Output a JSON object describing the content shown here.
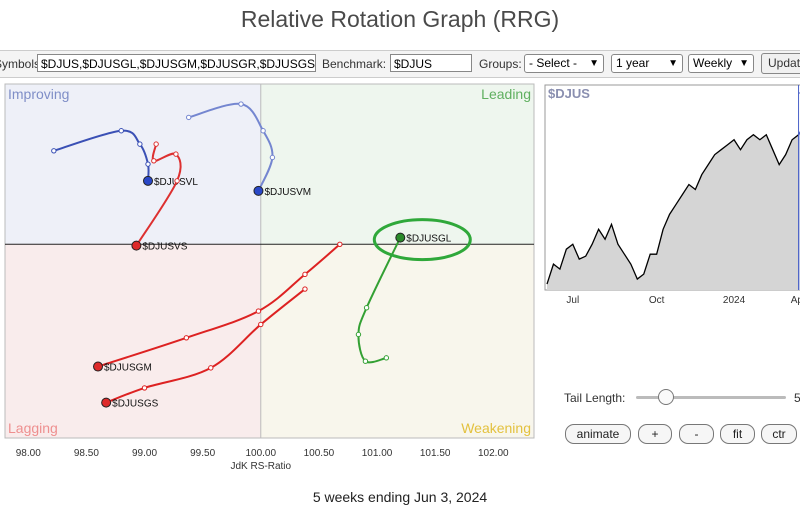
{
  "title": "Relative Rotation Graph (RRG)",
  "toolbar": {
    "symbols_label": "Symbols:",
    "symbols_value": "$DJUS,$DJUSGL,$DJUSGM,$DJUSGR,$DJUSGS",
    "benchmark_label": "Benchmark:",
    "benchmark_value": "$DJUS",
    "groups_label": "Groups:",
    "groups_value": "- Select -",
    "period_value": "1 year",
    "interval_value": "Weekly",
    "update_label": "Update"
  },
  "rrg": {
    "quadrants": {
      "improving": "Improving",
      "leading": "Leading",
      "lagging": "Lagging",
      "weakening": "Weakening"
    },
    "quadrant_colors": {
      "improving_bg": "#eef0f8",
      "leading_bg": "#eef6ee",
      "lagging_bg": "#f9ecec",
      "weakening_bg": "#f8f6ec",
      "improving_text": "#7f8ec7",
      "leading_text": "#60b060",
      "lagging_text": "#ee8f8f",
      "weakening_text": "#e3c13e"
    },
    "x_axis_label": "JdK RS-Ratio",
    "x_ticks": [
      "98.00",
      "98.50",
      "99.00",
      "99.50",
      "100.00",
      "100.50",
      "101.00",
      "101.50",
      "102.00"
    ],
    "x_range": [
      97.8,
      102.35
    ],
    "y_range": [
      97.1,
      102.4
    ],
    "center": [
      100,
      100
    ],
    "highlight_circle_color": "#2fa83a",
    "series": [
      {
        "name": "$DJUSVL",
        "color": "#2233bb",
        "head_color": "#2a48c8",
        "tail_color": "#3a50b5",
        "points": [
          [
            98.22,
            101.4
          ],
          [
            98.8,
            101.7
          ],
          [
            98.96,
            101.5
          ],
          [
            99.03,
            101.2
          ],
          [
            99.03,
            100.95
          ]
        ]
      },
      {
        "name": "$DJUSVM",
        "color": "#6677cc",
        "head_color": "#2a48c8",
        "tail_color": "#7486d0",
        "points": [
          [
            99.38,
            101.9
          ],
          [
            99.83,
            102.1
          ],
          [
            100.02,
            101.7
          ],
          [
            100.1,
            101.3
          ],
          [
            99.98,
            100.8
          ]
        ]
      },
      {
        "name": "$DJUSVS",
        "color": "#dd2222",
        "head_color": "#dd2a2a",
        "tail_color": "#dd3030",
        "points": [
          [
            99.1,
            101.5
          ],
          [
            99.08,
            101.25
          ],
          [
            99.27,
            101.35
          ],
          [
            99.28,
            100.95
          ],
          [
            98.93,
            99.98
          ]
        ]
      },
      {
        "name": "$DJUSGL",
        "color": "#2a9a2a",
        "head_color": "#2a8a2a",
        "tail_color": "#33a033",
        "points": [
          [
            101.08,
            98.3
          ],
          [
            100.9,
            98.25
          ],
          [
            100.84,
            98.65
          ],
          [
            100.91,
            99.05
          ],
          [
            101.2,
            100.1
          ]
        ]
      },
      {
        "name": "$DJUSGM",
        "color": "#dd1111",
        "head_color": "#dd2a2a",
        "tail_color": "#dd2222",
        "points": [
          [
            100.68,
            100.0
          ],
          [
            100.38,
            99.55
          ],
          [
            99.98,
            99.0
          ],
          [
            99.36,
            98.6
          ],
          [
            98.6,
            98.17
          ]
        ]
      },
      {
        "name": "$DJUSGS",
        "color": "#dd1111",
        "head_color": "#dd2a2a",
        "tail_color": "#dd2222",
        "points": [
          [
            100.38,
            99.33
          ],
          [
            100.0,
            98.8
          ],
          [
            99.57,
            98.15
          ],
          [
            99.0,
            97.85
          ],
          [
            98.67,
            97.63
          ]
        ]
      }
    ]
  },
  "price_chart": {
    "symbol": "$DJUS",
    "x_ticks": [
      "Jul",
      "Oct",
      "2024",
      "Apr"
    ],
    "values": [
      97,
      99,
      98.5,
      100.5,
      101,
      99.5,
      99.8,
      101,
      102.5,
      101.5,
      103,
      101,
      100,
      99,
      97.5,
      98,
      100,
      100,
      102.5,
      104,
      105,
      106,
      107,
      106.5,
      108,
      109,
      110,
      110.5,
      111,
      111.5,
      110.5,
      111.5,
      112,
      111.5,
      112,
      110.5,
      109,
      110,
      111.5,
      112,
      113
    ],
    "highlight_start_index": 39,
    "line_color": "#000000",
    "fill_color": "#d5d5d5",
    "highlight_fill": "#c5cbe6",
    "highlight_line": "#4a60c8"
  },
  "controls": {
    "tail_length_label": "Tail Length:",
    "tail_length_value": "5",
    "tail_length_fraction": 0.16,
    "animate_label": "animate",
    "plus_label": "+",
    "minus_label": "-",
    "fit_label": "fit",
    "ctr_label": "ctr"
  },
  "footer_text": "5 weeks ending Jun 3, 2024"
}
